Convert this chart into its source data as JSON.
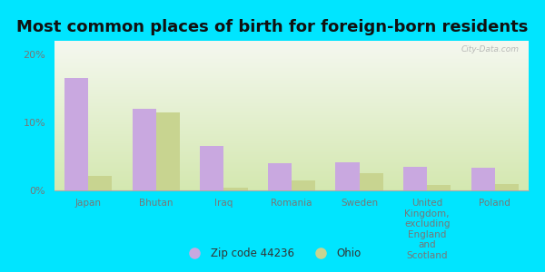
{
  "title": "Most common places of birth for foreign-born residents",
  "categories": [
    "Japan",
    "Bhutan",
    "Iraq",
    "Romania",
    "Sweden",
    "United\nKingdom,\nexcluding\nEngland\nand\nScotland",
    "Poland"
  ],
  "zip_values": [
    16.5,
    12.0,
    6.5,
    4.0,
    4.2,
    3.5,
    3.3
  ],
  "ohio_values": [
    2.2,
    11.5,
    0.4,
    1.5,
    2.5,
    0.8,
    1.0
  ],
  "zip_color": "#c9a8e0",
  "ohio_color": "#c8d490",
  "plot_bg_top": "#f5f8f0",
  "plot_bg_bottom": "#d4e8b0",
  "outer_background": "#00e5ff",
  "ylim": [
    0,
    22
  ],
  "yticks": [
    0,
    10,
    20
  ],
  "ytick_labels": [
    "0%",
    "10%",
    "20%"
  ],
  "legend_zip_label": "Zip code 44236",
  "legend_ohio_label": "Ohio",
  "bar_width": 0.35,
  "title_fontsize": 13,
  "watermark": "City-Data.com",
  "tick_color": "#777777",
  "label_fontsize": 7.5
}
